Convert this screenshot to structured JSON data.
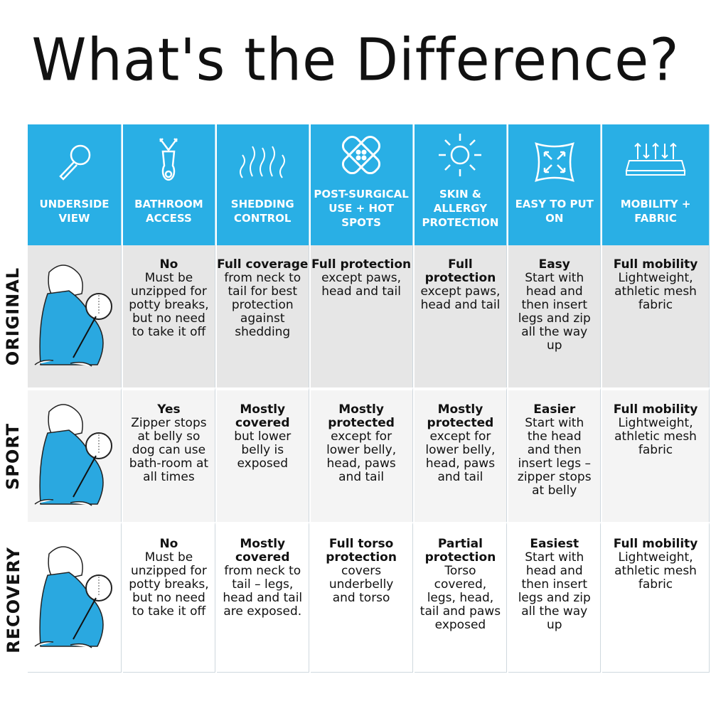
{
  "title": "What's the Difference?",
  "colors": {
    "header": "#29afe5",
    "row_original": "#e6e6e6",
    "row_sport": "#f4f4f4",
    "row_recovery": "#ffffff"
  },
  "headers": [
    {
      "label": "UNDERSIDE VIEW",
      "icon": "magnifier-icon"
    },
    {
      "label": "BATHROOM ACCESS",
      "icon": "zipper-icon"
    },
    {
      "label": "SHEDDING CONTROL",
      "icon": "hair-icon"
    },
    {
      "label": "POST-SURGICAL USE + HOT SPOTS",
      "icon": "bandage-icon"
    },
    {
      "label": "SKIN & ALLERGY PROTECTION",
      "icon": "sun-icon"
    },
    {
      "label": "EASY TO PUT ON",
      "icon": "expand-arrows-icon"
    },
    {
      "label": "MOBILITY + FABRIC",
      "icon": "mesh-fabric-icon"
    }
  ],
  "rows": [
    {
      "label": "ORIGINAL",
      "cells": [
        {
          "head": "No",
          "text": "Must be unzipped for potty breaks, but no need to take it off"
        },
        {
          "head": "Full coverage",
          "text": "from neck to tail for best protection against shedding"
        },
        {
          "head": "Full protection",
          "text": "except paws, head and tail"
        },
        {
          "head": "Full protection",
          "text": "except paws, head and tail"
        },
        {
          "head": "Easy",
          "text": "Start with head and then insert legs and zip all the way up"
        },
        {
          "head": "Full mobility",
          "text": "Lightweight, athletic mesh fabric"
        }
      ]
    },
    {
      "label": "SPORT",
      "cells": [
        {
          "head": "Yes",
          "text": "Zipper stops at belly so dog can use bath-room at all times"
        },
        {
          "head": "Mostly covered",
          "text": "but lower belly is exposed"
        },
        {
          "head": "Mostly protected",
          "text": "except for lower belly, head, paws and tail"
        },
        {
          "head": "Mostly protected",
          "text": "except for lower belly, head, paws and tail"
        },
        {
          "head": "Easier",
          "text": "Start with the head and then insert legs – zipper stops at belly"
        },
        {
          "head": "Full mobility",
          "text": "Lightweight, athletic mesh fabric"
        }
      ]
    },
    {
      "label": "RECOVERY",
      "cells": [
        {
          "head": "No",
          "text": "Must be unzipped for potty breaks, but no need to take it off"
        },
        {
          "head": "Mostly covered",
          "text": "from neck to tail – legs, head and tail are exposed."
        },
        {
          "head": "Full torso protection",
          "text": "covers underbelly and torso"
        },
        {
          "head": "Partial protection",
          "text": "Torso covered, legs, head, tail and paws exposed"
        },
        {
          "head": "Easiest",
          "text": "Start with head and then insert legs and zip all the way up"
        },
        {
          "head": "Full mobility",
          "text": "Lightweight, athletic mesh fabric"
        }
      ]
    }
  ]
}
